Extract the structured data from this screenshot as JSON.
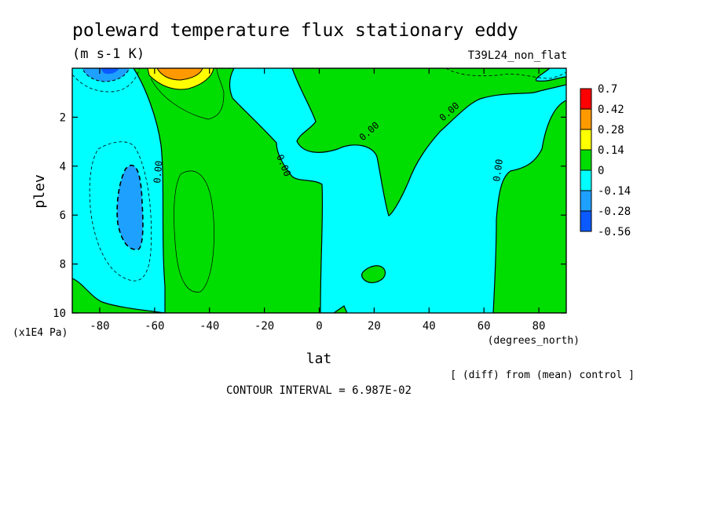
{
  "chart_data": {
    "type": "contour",
    "title": "poleward temperature flux stationary eddy",
    "units": "(m s-1 K)",
    "run_label": "T39L24_non_flat",
    "xlabel": "lat",
    "xunits": "(degrees_north)",
    "ylabel": "plev",
    "yunits": "(x1E4 Pa)",
    "xlim": [
      -90,
      90
    ],
    "ylim": [
      10,
      0
    ],
    "x_ticks": [
      -80,
      -60,
      -40,
      -20,
      0,
      20,
      40,
      60,
      80
    ],
    "y_ticks": [
      2,
      4,
      6,
      8,
      10
    ],
    "x_tick_labels": [
      "-80",
      "-60",
      "-40",
      "-20",
      "0",
      "20",
      "40",
      "60",
      "80"
    ],
    "y_tick_labels": [
      "2",
      "4",
      "6",
      "8",
      "10"
    ],
    "colorbar": {
      "levels": [
        "0.7",
        "0.42",
        "0.28",
        "0.14",
        "0",
        "-0.14",
        "-0.28",
        "-0.56"
      ],
      "colors": [
        "#ff0000",
        "#ff9900",
        "#ffff00",
        "#00dd00",
        "#00ffff",
        "#1ea0ff",
        "#0a5aff"
      ]
    },
    "colors": {
      "strong_neg": "#0a5aff",
      "mid_neg": "#1ea0ff",
      "weak_neg": "#00ffff",
      "weak_pos": "#00dd00",
      "mid_pos": "#ffff00",
      "strong_pos": "#ff9900",
      "max_pos": "#ff0000"
    },
    "contour_labels": [
      "0.00",
      "0.00",
      "0.00",
      "0.00",
      "0.00"
    ],
    "footer_note": "[ (diff) from (mean) control ]",
    "contour_interval": "CONTOUR INTERVAL = 6.987E-02"
  }
}
